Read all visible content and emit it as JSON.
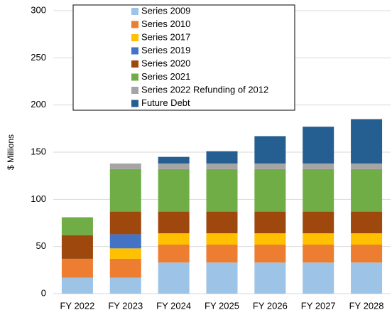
{
  "chart_data": {
    "type": "stacked_bar",
    "y_label": "$ Millions",
    "categories": [
      "FY 2022",
      "FY 2023",
      "FY 2024",
      "FY 2025",
      "FY 2026",
      "FY 2027",
      "FY 2028"
    ],
    "series": [
      {
        "name": "Series 2009",
        "color": "#9dc3e6",
        "values": [
          17,
          17,
          33,
          33,
          33,
          33,
          33
        ]
      },
      {
        "name": "Series 2010",
        "color": "#ed7d31",
        "values": [
          20,
          20,
          19,
          19,
          19,
          19,
          19
        ]
      },
      {
        "name": "Series 2017",
        "color": "#ffc000",
        "values": [
          0,
          11,
          12,
          12,
          12,
          12,
          12
        ]
      },
      {
        "name": "Series 2019",
        "color": "#4472c4",
        "values": [
          0,
          15,
          0,
          0,
          0,
          0,
          0
        ]
      },
      {
        "name": "Series 2020",
        "color": "#9e480e",
        "values": [
          25,
          24,
          23,
          23,
          23,
          23,
          23
        ]
      },
      {
        "name": "Series 2021",
        "color": "#70ad47",
        "values": [
          19,
          45,
          45,
          45,
          45,
          45,
          45
        ]
      },
      {
        "name": "Series 2022 Refunding of 2012",
        "color": "#a5a5a5",
        "values": [
          0,
          6,
          6,
          6,
          6,
          6,
          6
        ]
      },
      {
        "name": "Future Debt",
        "color": "#255e91",
        "values": [
          0,
          0,
          7,
          13,
          29,
          39,
          47
        ]
      }
    ],
    "ylim": [
      0,
      300
    ],
    "yticks": [
      0,
      50,
      100,
      150,
      200,
      250,
      300
    ],
    "grid": true,
    "legend": "top"
  }
}
